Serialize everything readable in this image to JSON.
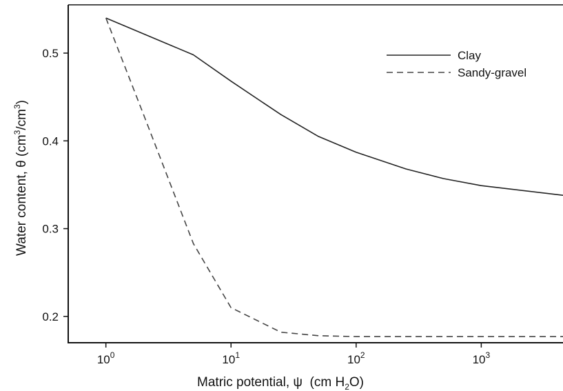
{
  "chart_data": {
    "type": "line",
    "xscale": "log",
    "xlim": [
      0.5,
      4500
    ],
    "ylim": [
      0.17,
      0.555
    ],
    "grid": false,
    "legend_position": "top-right",
    "x_ticks": [
      {
        "value": 1,
        "base": "10",
        "exp": "0"
      },
      {
        "value": 10,
        "base": "10",
        "exp": "1"
      },
      {
        "value": 100,
        "base": "10",
        "exp": "2"
      },
      {
        "value": 1000,
        "base": "10",
        "exp": "3"
      }
    ],
    "y_ticks": [
      {
        "value": 0.2,
        "label": "0.2"
      },
      {
        "value": 0.3,
        "label": "0.3"
      },
      {
        "value": 0.4,
        "label": "0.4"
      },
      {
        "value": 0.5,
        "label": "0.5"
      }
    ],
    "xlabel": {
      "prefix": "Matric potential, ",
      "symbol": "ψ",
      "unit_pre": "  (cm H",
      "sub": "2",
      "unit_post": "O)"
    },
    "ylabel": {
      "prefix": "Water content, ",
      "symbol": "θ",
      "unit_1": " (cm",
      "sup_1": "3",
      "unit_2": "/cm",
      "sup_2": "3",
      "unit_3": ")"
    },
    "series": [
      {
        "name": "Clay",
        "style": "solid",
        "color": "#222222",
        "x": [
          1,
          5,
          10,
          25,
          50,
          100,
          250,
          500,
          1000,
          4500
        ],
        "y": [
          0.54,
          0.498,
          0.468,
          0.43,
          0.405,
          0.387,
          0.368,
          0.357,
          0.349,
          0.338
        ]
      },
      {
        "name": "Sandy-gravel",
        "style": "dashed",
        "color": "#444444",
        "x": [
          1,
          2,
          5,
          10,
          25,
          50,
          100,
          4500
        ],
        "y": [
          0.54,
          0.43,
          0.283,
          0.21,
          0.182,
          0.178,
          0.177,
          0.177
        ]
      }
    ]
  }
}
